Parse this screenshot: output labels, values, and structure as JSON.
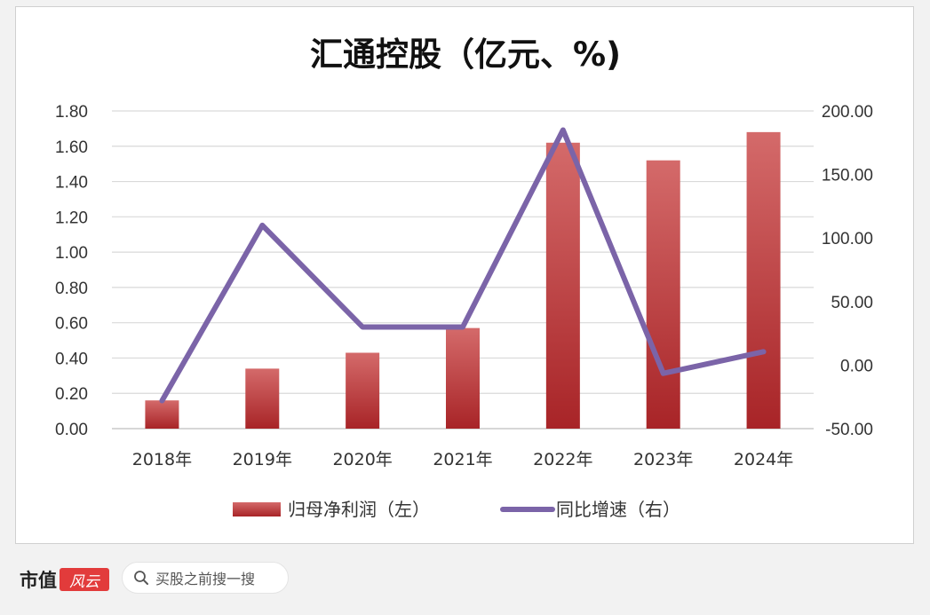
{
  "chart_data": {
    "type": "bar",
    "title": "汇通控股（亿元、%)",
    "categories": [
      "2018年",
      "2019年",
      "2020年",
      "2021年",
      "2022年",
      "2023年",
      "2024年"
    ],
    "series": [
      {
        "name": "归母净利润（左）",
        "type": "bar",
        "axis": "left",
        "color": "#c0383a",
        "values": [
          0.16,
          0.34,
          0.43,
          0.57,
          1.62,
          1.52,
          1.68
        ]
      },
      {
        "name": "同比增速（右）",
        "type": "line",
        "axis": "right",
        "color": "#7b64a8",
        "values": [
          -28.0,
          110.0,
          30.0,
          30.0,
          185.0,
          -6.5,
          10.5
        ]
      }
    ],
    "left_axis": {
      "min": 0,
      "max": 1.8,
      "ticks": [
        "0.00",
        "0.20",
        "0.40",
        "0.60",
        "0.80",
        "1.00",
        "1.20",
        "1.40",
        "1.60",
        "1.80"
      ]
    },
    "right_axis": {
      "min": -50,
      "max": 200,
      "ticks": [
        "-50.00",
        "0.00",
        "50.00",
        "100.00",
        "150.00",
        "200.00"
      ]
    },
    "grid": true,
    "legend_position": "bottom"
  },
  "footer": {
    "brand_text": "市值",
    "brand_logo_text": "风云",
    "search_placeholder": "买股之前搜一搜",
    "search_icon": "search-icon"
  }
}
